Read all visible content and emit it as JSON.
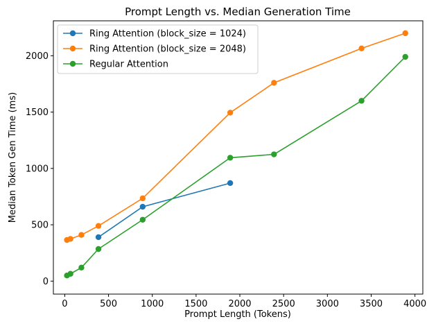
{
  "chart_data": {
    "type": "line",
    "title": "Prompt Length vs. Median Generation Time",
    "xlabel": "Prompt Length (Tokens)",
    "ylabel": "Median Token Gen Time (ms)",
    "xlim": [
      -130,
      4090
    ],
    "ylim": [
      -115,
      2310
    ],
    "xticks": [
      0,
      500,
      1000,
      1500,
      2000,
      2500,
      3000,
      3500,
      4000
    ],
    "yticks": [
      0,
      500,
      1000,
      1500,
      2000
    ],
    "grid": false,
    "legend_position": "top-left",
    "series": [
      {
        "name": "Ring Attention (block_size = 1024)",
        "color": "#1f77b4",
        "x": [
          385,
          890,
          1890
        ],
        "y": [
          390,
          660,
          870
        ]
      },
      {
        "name": "Ring Attention (block_size = 2048)",
        "color": "#ff7f0e",
        "x": [
          25,
          65,
          190,
          385,
          890,
          1890,
          2390,
          3390,
          3890
        ],
        "y": [
          365,
          375,
          410,
          490,
          735,
          1495,
          1760,
          2065,
          2200
        ]
      },
      {
        "name": "Regular Attention",
        "color": "#2ca02c",
        "x": [
          25,
          65,
          190,
          385,
          890,
          1890,
          2390,
          3390,
          3890
        ],
        "y": [
          50,
          65,
          120,
          285,
          545,
          1095,
          1125,
          1600,
          1990
        ]
      }
    ]
  }
}
